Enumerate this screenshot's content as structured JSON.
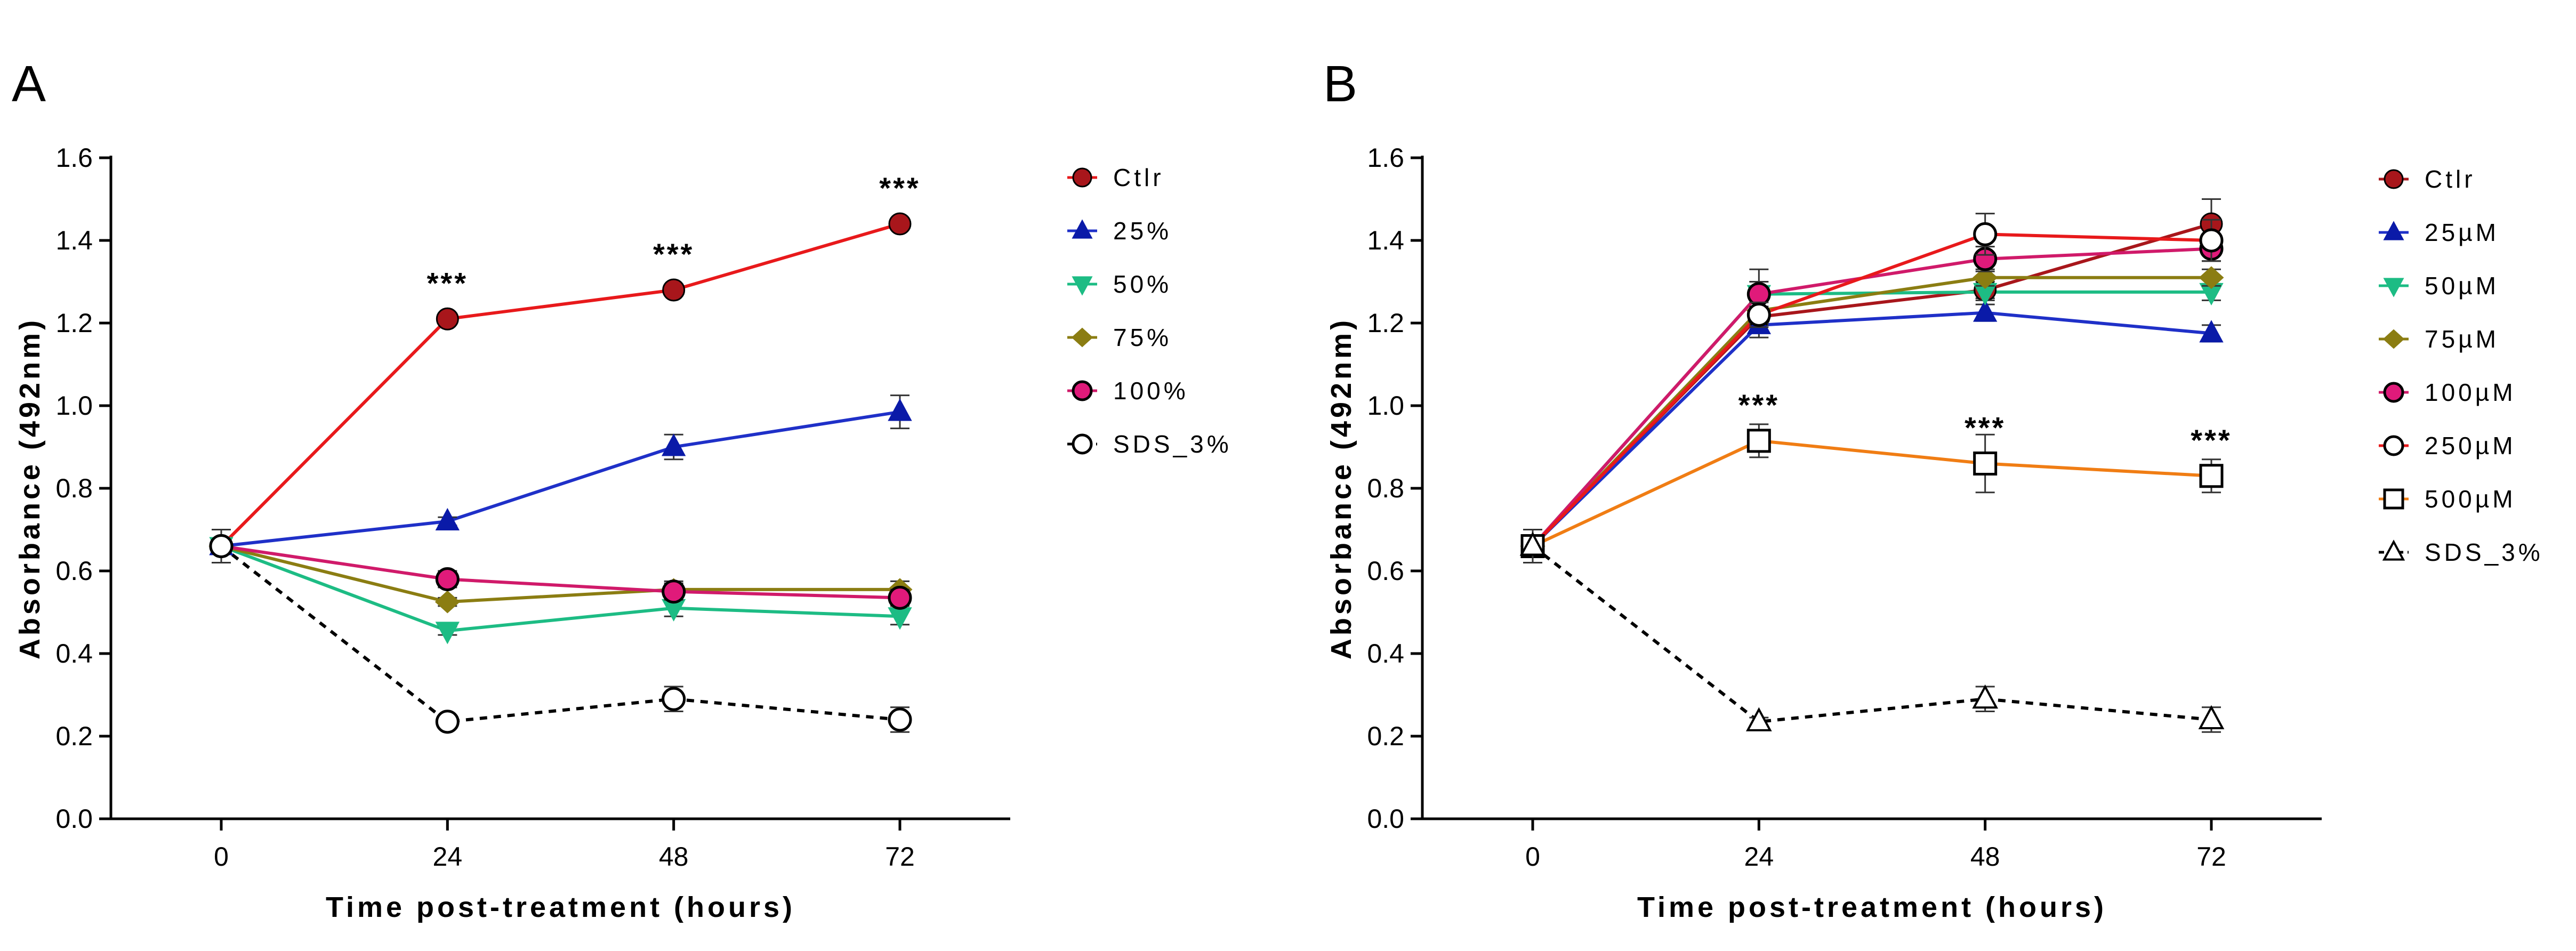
{
  "chart_data": [
    {
      "panel": "A",
      "type": "line",
      "xlabel": "Time post-treatment (hours)",
      "ylabel": "Absorbance (492nm)",
      "x": [
        0,
        24,
        48,
        72
      ],
      "x_tick_labels": [
        "0",
        "24",
        "48",
        "72"
      ],
      "ylim": [
        0,
        1.6
      ],
      "y_ticks": [
        0.0,
        0.2,
        0.4,
        0.6,
        0.8,
        1.0,
        1.2,
        1.4,
        1.6
      ],
      "y_tick_labels": [
        "0.0",
        "0.2",
        "0.4",
        "0.6",
        "0.8",
        "1.0",
        "1.2",
        "1.4",
        "1.6"
      ],
      "grid": false,
      "legend_position": "right",
      "series": [
        {
          "name": "Ctlr",
          "values": [
            0.66,
            1.21,
            1.28,
            1.44
          ],
          "errors": [
            0.01,
            0.01,
            0.01,
            0.01
          ],
          "color": "#e8191b",
          "marker_color": "#a8161b",
          "marker": "circle",
          "dashed": false
        },
        {
          "name": "25%",
          "values": [
            0.66,
            0.72,
            0.9,
            0.985
          ],
          "errors": [
            0.01,
            0.01,
            0.03,
            0.04
          ],
          "color": "#1f30c8",
          "marker_color": "#0a1aa8",
          "marker": "triangle-up",
          "dashed": false
        },
        {
          "name": "50%",
          "values": [
            0.66,
            0.455,
            0.51,
            0.49
          ],
          "errors": [
            0.01,
            0.01,
            0.02,
            0.02
          ],
          "color": "#1dbc84",
          "marker_color": "#1dbc84",
          "marker": "triangle-down",
          "dashed": false
        },
        {
          "name": "75%",
          "values": [
            0.66,
            0.525,
            0.555,
            0.555
          ],
          "errors": [
            0.01,
            0.01,
            0.02,
            0.02
          ],
          "color": "#8b7d12",
          "marker_color": "#8b7d12",
          "marker": "diamond",
          "dashed": false
        },
        {
          "name": "100%",
          "values": [
            0.66,
            0.58,
            0.55,
            0.535
          ],
          "errors": [
            0.01,
            0.02,
            0.02,
            0.02
          ],
          "color": "#d01a6a",
          "marker_color": "#e01a7a",
          "marker": "circle-outlined",
          "dashed": false
        },
        {
          "name": "SDS_3%",
          "values": [
            0.66,
            0.235,
            0.29,
            0.24
          ],
          "errors": [
            0.04,
            0.01,
            0.03,
            0.03
          ],
          "color": "#000000",
          "marker_color": "#ffffff",
          "marker": "circle-open",
          "dashed": true
        }
      ],
      "annotations": [
        {
          "x": 24,
          "y": 1.21,
          "text": "***"
        },
        {
          "x": 48,
          "y": 1.28,
          "text": "***"
        },
        {
          "x": 72,
          "y": 1.44,
          "text": "***"
        }
      ]
    },
    {
      "panel": "B",
      "type": "line",
      "xlabel": "Time post-treatment (hours)",
      "ylabel": "Absorbance (492nm)",
      "x": [
        0,
        24,
        48,
        72
      ],
      "x_tick_labels": [
        "0",
        "24",
        "48",
        "72"
      ],
      "ylim": [
        0,
        1.6
      ],
      "y_ticks": [
        0.0,
        0.2,
        0.4,
        0.6,
        0.8,
        1.0,
        1.2,
        1.4,
        1.6
      ],
      "y_tick_labels": [
        "0.0",
        "0.2",
        "0.4",
        "0.6",
        "0.8",
        "1.0",
        "1.2",
        "1.4",
        "1.6"
      ],
      "grid": false,
      "legend_position": "right",
      "series": [
        {
          "name": "Ctlr",
          "values": [
            0.66,
            1.215,
            1.28,
            1.44
          ],
          "errors": [
            0.04,
            0.02,
            0.02,
            0.06
          ],
          "color": "#a8161b",
          "marker_color": "#a8161b",
          "marker": "circle",
          "dashed": false
        },
        {
          "name": "25µM",
          "values": [
            0.66,
            1.195,
            1.225,
            1.175
          ],
          "errors": [
            0.04,
            0.03,
            0.02,
            0.02
          ],
          "color": "#1f30c8",
          "marker_color": "#0a1aa8",
          "marker": "triangle-up",
          "dashed": false
        },
        {
          "name": "50µM",
          "values": [
            0.66,
            1.27,
            1.275,
            1.275
          ],
          "errors": [
            0.04,
            0.06,
            0.02,
            0.02
          ],
          "color": "#1dbc84",
          "marker_color": "#1dbc84",
          "marker": "triangle-down",
          "dashed": false
        },
        {
          "name": "75µM",
          "values": [
            0.66,
            1.23,
            1.31,
            1.31
          ],
          "errors": [
            0.04,
            0.03,
            0.02,
            0.02
          ],
          "color": "#8b7d12",
          "marker_color": "#8b7d12",
          "marker": "diamond",
          "dashed": false
        },
        {
          "name": "100µM",
          "values": [
            0.66,
            1.27,
            1.355,
            1.38
          ],
          "errors": [
            0.04,
            0.03,
            0.03,
            0.03
          ],
          "color": "#d01a6a",
          "marker_color": "#e01a7a",
          "marker": "circle-outlined",
          "dashed": false
        },
        {
          "name": "250µM",
          "values": [
            0.66,
            1.22,
            1.415,
            1.4
          ],
          "errors": [
            0.04,
            0.03,
            0.05,
            0.05
          ],
          "color": "#e8191b",
          "marker_color": "#ffffff",
          "marker": "circle-open",
          "dashed": false
        },
        {
          "name": "500µM",
          "values": [
            0.66,
            0.915,
            0.86,
            0.83
          ],
          "errors": [
            0.04,
            0.04,
            0.07,
            0.04
          ],
          "color": "#f07d14",
          "marker_color": "#ffffff",
          "marker": "square-open",
          "dashed": false
        },
        {
          "name": "SDS_3%",
          "values": [
            0.66,
            0.235,
            0.29,
            0.24
          ],
          "errors": [
            0.04,
            0.01,
            0.03,
            0.03
          ],
          "color": "#000000",
          "marker_color": "#ffffff",
          "marker": "triangle-open",
          "dashed": true
        }
      ],
      "annotations": [
        {
          "x": 24,
          "y": 0.915,
          "text": "***"
        },
        {
          "x": 48,
          "y": 0.86,
          "text": "***"
        },
        {
          "x": 72,
          "y": 0.83,
          "text": "***"
        }
      ]
    }
  ]
}
